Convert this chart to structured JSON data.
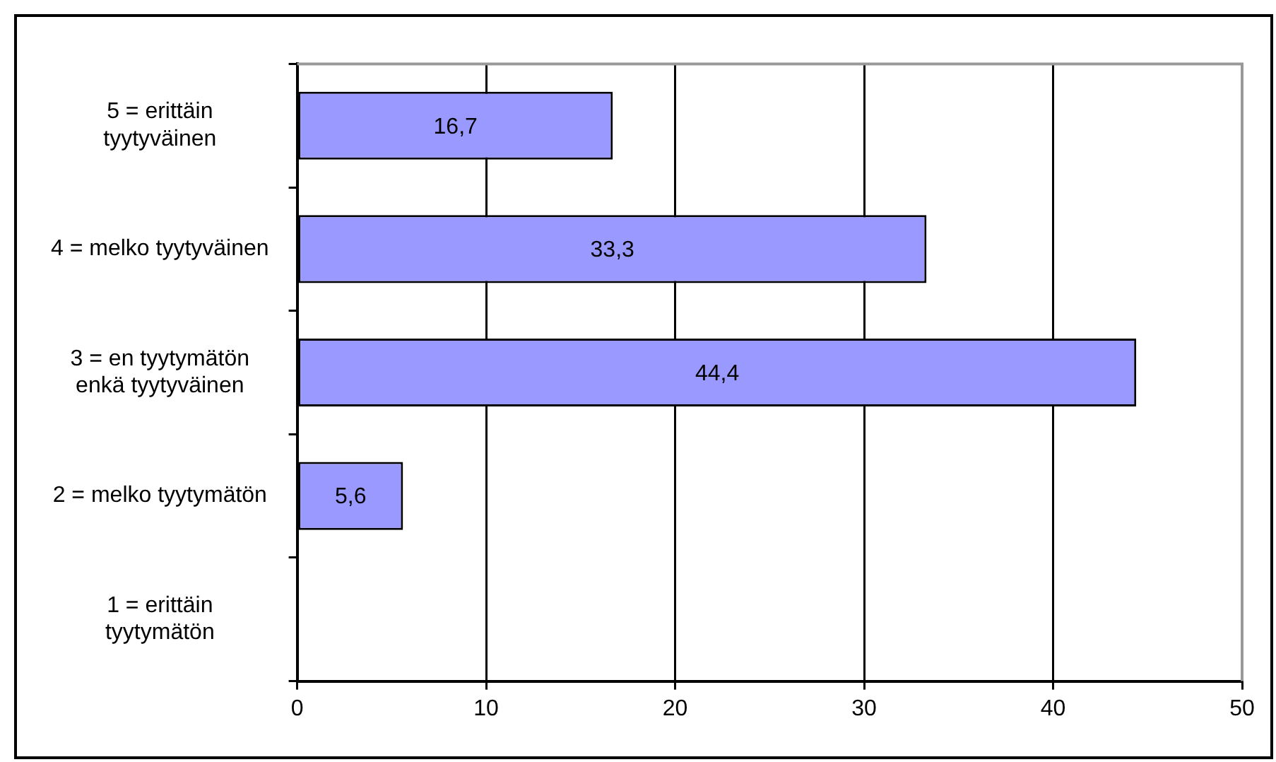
{
  "chart_data": {
    "type": "bar",
    "orientation": "horizontal",
    "categories": [
      "5 = erittäin\ntyytyväinen",
      "4 = melko tyytyväinen",
      "3 = en tyytymätön\nenkä tyytyväinen",
      "2 = melko tyytymätön",
      "1 = erittäin\ntyytymätön"
    ],
    "values": [
      16.7,
      33.3,
      44.4,
      5.6,
      0
    ],
    "value_labels": [
      "16,7",
      "33,3",
      "44,4",
      "5,6",
      null
    ],
    "color": "#9999ff",
    "xlim": [
      0,
      50
    ],
    "xticks": [
      0,
      10,
      20,
      30,
      40,
      50
    ],
    "grid": "x"
  }
}
